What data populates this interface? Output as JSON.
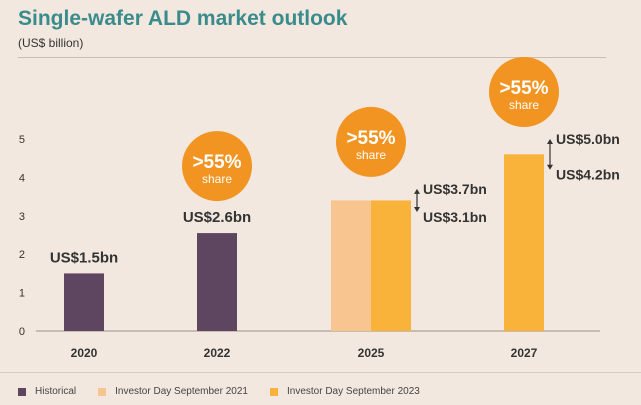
{
  "title": "Single-wafer ALD market outlook",
  "subtitle": "(US$ billion)",
  "colors": {
    "historical": "#5e4560",
    "investor_day_2021": "#f8c591",
    "investor_day_2023": "#f9b23a",
    "bubble": "#f29421",
    "axis": "#9a8f86",
    "text": "#222222"
  },
  "legend": [
    {
      "label": "Historical",
      "color_key": "historical"
    },
    {
      "label": "Investor Day September 2021",
      "color_key": "investor_day_2021"
    },
    {
      "label": "Investor Day September 2023",
      "color_key": "investor_day_2023"
    }
  ],
  "chart_data": {
    "type": "bar",
    "categories": [
      "2020",
      "2022",
      "2025",
      "2027"
    ],
    "ylim": [
      0,
      5
    ],
    "yticks": [
      "0",
      "1",
      "2",
      "3",
      "4",
      "5"
    ],
    "series": [
      {
        "name": "Historical",
        "color_key": "historical",
        "values": [
          1.5,
          2.55,
          null,
          null
        ]
      },
      {
        "name": "Investor Day September 2021",
        "color_key": "investor_day_2021",
        "values": [
          null,
          null,
          3.4,
          null
        ]
      },
      {
        "name": "Investor Day September 2023",
        "color_key": "investor_day_2023",
        "values": [
          null,
          null,
          3.4,
          4.6
        ]
      }
    ],
    "bar_labels": [
      {
        "category": "2020",
        "text": "US$1.5bn"
      },
      {
        "category": "2022",
        "text": "US$2.6bn"
      }
    ],
    "ranges": [
      {
        "category": "2025",
        "high": 3.7,
        "low": 3.1,
        "high_label": "US$3.7bn",
        "low_label": "US$3.1bn"
      },
      {
        "category": "2027",
        "high": 5.0,
        "low": 4.2,
        "high_label": "US$5.0bn",
        "low_label": "US$4.2bn"
      }
    ],
    "share_bubbles": [
      {
        "category": "2022",
        "value": ">55%",
        "label": "share"
      },
      {
        "category": "2025",
        "value": ">55%",
        "label": "share"
      },
      {
        "category": "2027",
        "value": ">55%",
        "label": "share"
      }
    ],
    "grid": false,
    "legend_position": "bottom-left"
  }
}
